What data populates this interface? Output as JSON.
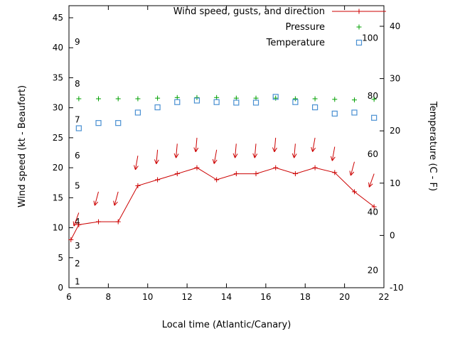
{
  "chart_data": {
    "type": "line",
    "title": "",
    "xlabel": "Local time (Atlantic/Canary)",
    "ylabel_left": "Wind speed (kt - Beaufort)",
    "ylabel_right": "Temperature (C - F)",
    "xlim": [
      6,
      22
    ],
    "x_ticks": [
      6,
      8,
      10,
      12,
      14,
      16,
      18,
      20,
      22
    ],
    "ylim_left": [
      0,
      47
    ],
    "y_ticks_left": [
      0,
      5,
      10,
      15,
      20,
      25,
      30,
      35,
      40,
      45
    ],
    "ylim_right": [
      -10,
      43.9
    ],
    "y_ticks_right": [
      -10,
      0,
      10,
      20,
      30,
      40
    ],
    "beaufort_labels": [
      {
        "label": "1",
        "kt": 1
      },
      {
        "label": "2",
        "kt": 4
      },
      {
        "label": "3",
        "kt": 7
      },
      {
        "label": "4",
        "kt": 11
      },
      {
        "label": "5",
        "kt": 17
      },
      {
        "label": "6",
        "kt": 22
      },
      {
        "label": "7",
        "kt": 28
      },
      {
        "label": "8",
        "kt": 34
      },
      {
        "label": "9",
        "kt": 41
      }
    ],
    "fahrenheit_labels": [
      {
        "label": "20",
        "f": 20
      },
      {
        "label": "40",
        "f": 40
      },
      {
        "label": "60",
        "f": 60
      },
      {
        "label": "80",
        "f": 80
      },
      {
        "label": "100",
        "f": 100
      }
    ],
    "legend": [
      {
        "label": "Wind speed, gusts, and direction",
        "style": "line-plus",
        "color": "#cc0000"
      },
      {
        "label": "Pressure",
        "style": "plus",
        "color": "#00a000"
      },
      {
        "label": "Temperature",
        "style": "square",
        "color": "#4a90d2"
      }
    ],
    "series": {
      "wind": {
        "x": [
          6.1,
          6.5,
          7.5,
          8.5,
          9.5,
          10.5,
          11.5,
          12.5,
          13.5,
          14.5,
          15.5,
          16.5,
          17.5,
          18.5,
          19.5,
          20.5,
          21.5
        ],
        "kt": [
          8,
          10.5,
          11,
          11,
          17,
          18,
          19,
          20,
          18,
          19,
          19,
          20,
          19,
          20,
          19.2,
          16,
          13.5
        ]
      },
      "gusts": {
        "x": [
          6.5,
          7.5,
          8.5,
          9.5,
          10.5,
          11.5,
          12.5,
          13.5,
          14.5,
          15.5,
          16.5,
          17.5,
          18.5,
          19.5,
          20.5,
          21.5
        ],
        "kt": [
          12.5,
          16,
          16,
          22,
          23,
          24,
          25,
          23,
          24,
          24,
          25,
          24,
          25,
          23.5,
          21,
          19
        ],
        "dir_deg": [
          200,
          195,
          195,
          190,
          185,
          185,
          185,
          190,
          185,
          185,
          185,
          185,
          190,
          190,
          195,
          200
        ]
      },
      "pressure": {
        "x": [
          6.5,
          7.5,
          8.5,
          9.5,
          10.5,
          11.5,
          12.5,
          13.5,
          14.5,
          15.5,
          16.5,
          17.5,
          18.5,
          19.5,
          20.5,
          21.5
        ],
        "kt": [
          31.5,
          31.5,
          31.5,
          31.5,
          31.6,
          31.7,
          31.7,
          31.7,
          31.6,
          31.6,
          31.6,
          31.5,
          31.5,
          31.4,
          31.3,
          31.4
        ]
      },
      "temperature": {
        "x": [
          6.5,
          7.5,
          8.5,
          9.5,
          10.5,
          11.5,
          12.5,
          13.5,
          14.5,
          15.5,
          16.5,
          17.5,
          18.5,
          19.5,
          20.5,
          21.5
        ],
        "c": [
          20.5,
          21.5,
          21.5,
          23.5,
          24.5,
          25.5,
          25.8,
          25.5,
          25.4,
          25.4,
          26.5,
          25.5,
          24.5,
          23.3,
          23.5,
          22.5
        ]
      }
    },
    "colors": {
      "wind": "#cc0000",
      "pressure": "#00a000",
      "temperature": "#4a90d2",
      "axis": "#000000"
    }
  }
}
